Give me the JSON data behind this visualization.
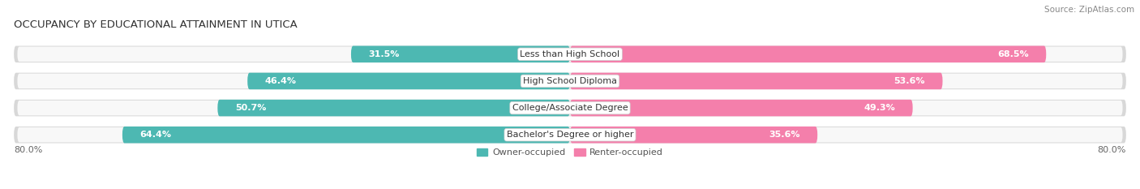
{
  "title": "OCCUPANCY BY EDUCATIONAL ATTAINMENT IN UTICA",
  "source": "Source: ZipAtlas.com",
  "categories": [
    "Less than High School",
    "High School Diploma",
    "College/Associate Degree",
    "Bachelor's Degree or higher"
  ],
  "owner_values": [
    31.5,
    46.4,
    50.7,
    64.4
  ],
  "renter_values": [
    68.5,
    53.6,
    49.3,
    35.6
  ],
  "owner_color": "#4db8b2",
  "renter_color": "#f47fab",
  "bar_bg_color": "#e0e0e0",
  "owner_label": "Owner-occupied",
  "renter_label": "Renter-occupied",
  "x_left_label": "80.0%",
  "x_right_label": "80.0%",
  "title_fontsize": 9.5,
  "source_fontsize": 7.5,
  "label_fontsize": 8,
  "bar_label_fontsize": 8,
  "category_fontsize": 8,
  "legend_fontsize": 8,
  "background_color": "#ffffff"
}
